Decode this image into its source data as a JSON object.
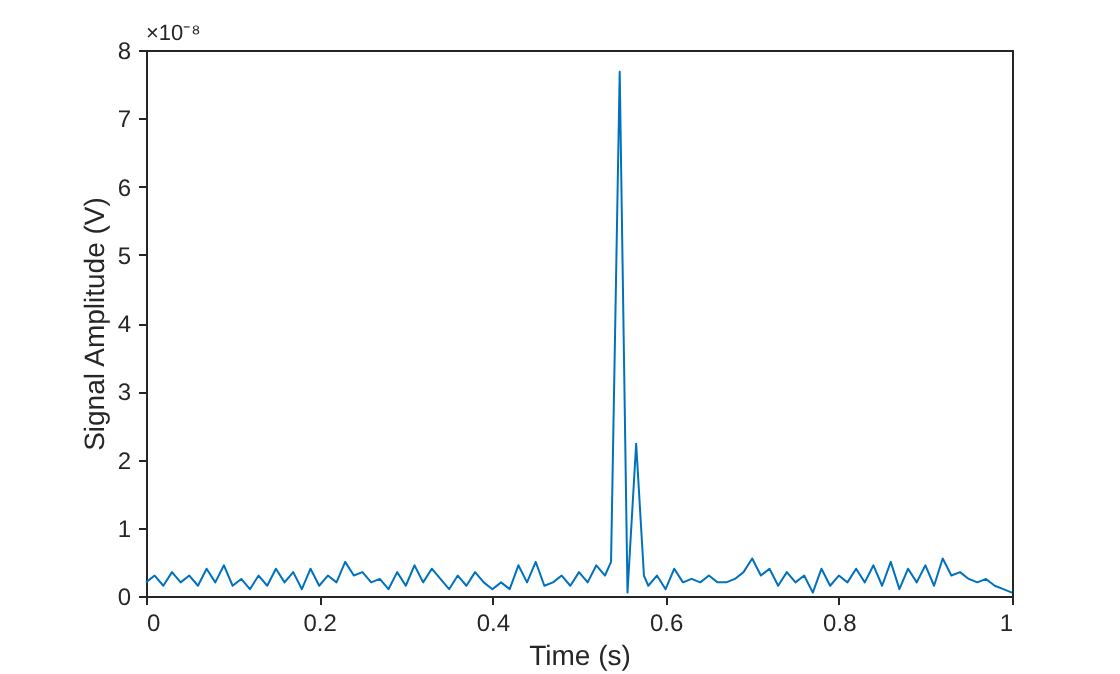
{
  "chart_data": {
    "type": "line",
    "xlabel": "Time (s)",
    "ylabel": "Signal Amplitude (V)",
    "x": [
      0,
      0.01,
      0.02,
      0.03,
      0.04,
      0.05,
      0.06,
      0.07,
      0.08,
      0.09,
      0.1,
      0.11,
      0.12,
      0.13,
      0.14,
      0.15,
      0.16,
      0.17,
      0.18,
      0.19,
      0.2,
      0.21,
      0.22,
      0.23,
      0.24,
      0.25,
      0.26,
      0.27,
      0.28,
      0.29,
      0.3,
      0.31,
      0.32,
      0.33,
      0.34,
      0.35,
      0.36,
      0.37,
      0.38,
      0.39,
      0.4,
      0.41,
      0.42,
      0.43,
      0.44,
      0.45,
      0.46,
      0.47,
      0.48,
      0.49,
      0.5,
      0.51,
      0.52,
      0.53,
      0.537,
      0.547,
      0.556,
      0.566,
      0.575,
      0.58,
      0.59,
      0.6,
      0.61,
      0.62,
      0.63,
      0.64,
      0.65,
      0.66,
      0.67,
      0.68,
      0.69,
      0.7,
      0.71,
      0.72,
      0.73,
      0.74,
      0.75,
      0.76,
      0.77,
      0.78,
      0.79,
      0.8,
      0.81,
      0.82,
      0.83,
      0.84,
      0.85,
      0.86,
      0.87,
      0.88,
      0.89,
      0.9,
      0.91,
      0.92,
      0.93,
      0.94,
      0.95,
      0.96,
      0.97,
      0.98,
      0.99,
      1.0
    ],
    "series": [
      {
        "color": "#0072bd",
        "values": [
          0.2,
          0.3,
          0.15,
          0.35,
          0.2,
          0.3,
          0.15,
          0.4,
          0.2,
          0.45,
          0.15,
          0.25,
          0.1,
          0.3,
          0.15,
          0.4,
          0.2,
          0.35,
          0.1,
          0.4,
          0.15,
          0.3,
          0.2,
          0.5,
          0.3,
          0.35,
          0.2,
          0.25,
          0.1,
          0.35,
          0.15,
          0.45,
          0.2,
          0.4,
          0.25,
          0.1,
          0.3,
          0.15,
          0.35,
          0.2,
          0.1,
          0.2,
          0.1,
          0.45,
          0.2,
          0.5,
          0.15,
          0.2,
          0.3,
          0.15,
          0.35,
          0.2,
          0.45,
          0.3,
          0.5,
          7.68,
          0.05,
          2.23,
          0.3,
          0.15,
          0.3,
          0.1,
          0.4,
          0.2,
          0.25,
          0.2,
          0.3,
          0.2,
          0.2,
          0.25,
          0.35,
          0.55,
          0.3,
          0.4,
          0.15,
          0.35,
          0.2,
          0.3,
          0.05,
          0.4,
          0.15,
          0.3,
          0.2,
          0.4,
          0.2,
          0.45,
          0.15,
          0.5,
          0.1,
          0.4,
          0.2,
          0.45,
          0.15,
          0.55,
          0.3,
          0.35,
          0.25,
          0.2,
          0.25,
          0.15,
          0.1,
          0.05
        ]
      }
    ],
    "xlim": [
      0,
      1
    ],
    "xticks": [
      0,
      0.2,
      0.4,
      0.6,
      0.8,
      1
    ],
    "ylim": [
      0,
      8
    ],
    "yticks": [
      0,
      1,
      2,
      3,
      4,
      5,
      6,
      7,
      8
    ],
    "annotations": [
      "×10⁻⁸"
    ],
    "grid": false
  }
}
